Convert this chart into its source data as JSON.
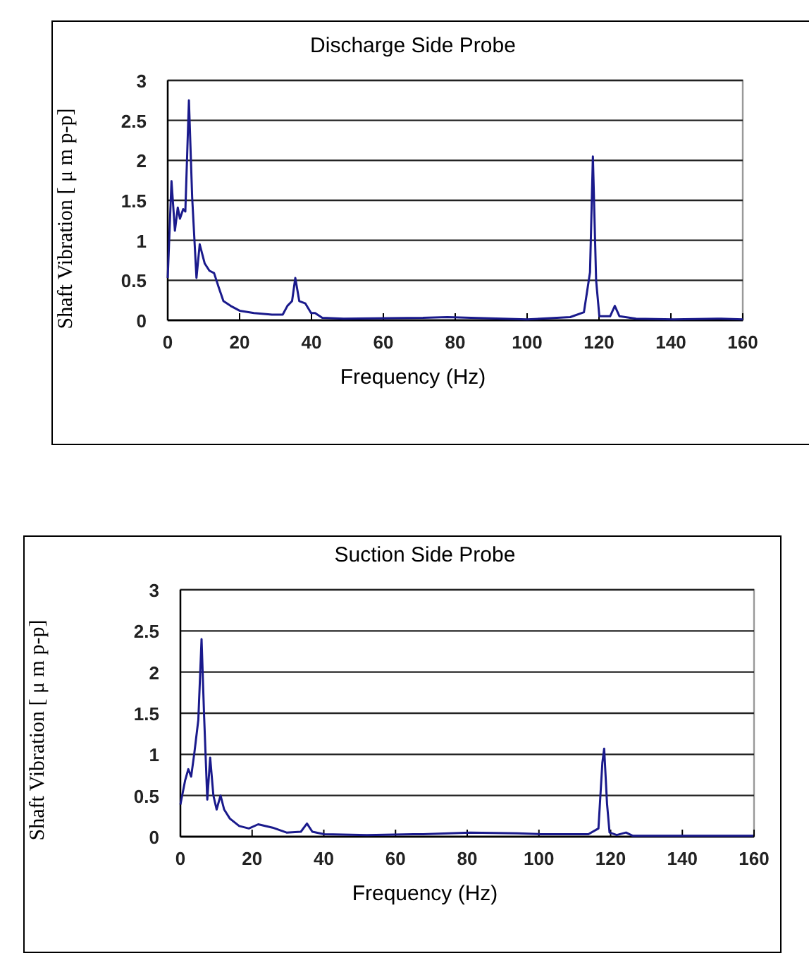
{
  "chart_data": [
    {
      "type": "line",
      "title": "Discharge Side Probe",
      "xlabel": "Frequency (Hz)",
      "ylabel": "Shaft Vibration [ μ m p-p]",
      "xlim": [
        0,
        160
      ],
      "xticks": [
        0,
        20,
        40,
        60,
        80,
        100,
        120,
        140,
        160
      ],
      "ylim": [
        0,
        3
      ],
      "yticks": [
        0,
        0.5,
        1,
        1.5,
        2,
        2.5,
        3
      ],
      "grid": "y",
      "marker": "none",
      "line_style": "solid",
      "series": [
        {
          "color": "#1a1a8c",
          "x": [
            0,
            1.05,
            2,
            2.8,
            3.4,
            4.3,
            4.9,
            5.9,
            6.8,
            8,
            8.9,
            10.3,
            11.6,
            12.9,
            14.2,
            15.5,
            17.5,
            20,
            24,
            29,
            32,
            33.3,
            34.6,
            35.5,
            36.6,
            38.3,
            39.9,
            41,
            43,
            49,
            71,
            77.8,
            84.4,
            100,
            112,
            115.8,
            117.5,
            118.3,
            119.2,
            120.1,
            123.1,
            124.4,
            125.7,
            130.3,
            140.8,
            154,
            160
          ],
          "values": [
            0.53,
            1.74,
            1.12,
            1.41,
            1.27,
            1.39,
            1.36,
            2.75,
            1.54,
            0.53,
            0.95,
            0.71,
            0.62,
            0.59,
            0.41,
            0.24,
            0.18,
            0.12,
            0.09,
            0.07,
            0.07,
            0.18,
            0.24,
            0.53,
            0.24,
            0.21,
            0.09,
            0.09,
            0.03,
            0.02,
            0.03,
            0.04,
            0.03,
            0.01,
            0.04,
            0.1,
            0.6,
            2.05,
            0.5,
            0.05,
            0.05,
            0.18,
            0.05,
            0.02,
            0.01,
            0.02,
            0.01
          ]
        }
      ]
    },
    {
      "type": "line",
      "title": "Suction Side Probe",
      "xlabel": "Frequency (Hz)",
      "ylabel": "Shaft Vibration [ μ m p-p]",
      "xlim": [
        0,
        160
      ],
      "xticks": [
        0,
        20,
        40,
        60,
        80,
        100,
        120,
        140,
        160
      ],
      "ylim": [
        0,
        3
      ],
      "yticks": [
        0,
        0.5,
        1,
        1.5,
        2,
        2.5,
        3
      ],
      "grid": "y",
      "marker": "none",
      "line_style": "solid",
      "series": [
        {
          "color": "#1a1a8c",
          "x": [
            0,
            1.3,
            2.2,
            3,
            3.9,
            5,
            5.9,
            6.6,
            7.5,
            8.3,
            9.2,
            10.1,
            11.2,
            12.2,
            13.8,
            16.4,
            19.1,
            21.7,
            25.7,
            29.6,
            33.6,
            35.3,
            36.8,
            40.1,
            52,
            65,
            67.7,
            80.9,
            94,
            100.6,
            113.8,
            116.6,
            117.7,
            118.2,
            119,
            119.7,
            121.7,
            124.3,
            126.2,
            140,
            159.8
          ],
          "values": [
            0.39,
            0.68,
            0.82,
            0.73,
            1.02,
            1.42,
            2.4,
            1.48,
            0.45,
            0.96,
            0.5,
            0.33,
            0.5,
            0.33,
            0.22,
            0.13,
            0.1,
            0.15,
            0.11,
            0.05,
            0.06,
            0.16,
            0.06,
            0.03,
            0.02,
            0.03,
            0.03,
            0.05,
            0.04,
            0.03,
            0.03,
            0.1,
            0.9,
            1.07,
            0.4,
            0.05,
            0.02,
            0.05,
            0.01,
            0.01,
            0.01
          ]
        }
      ]
    }
  ]
}
